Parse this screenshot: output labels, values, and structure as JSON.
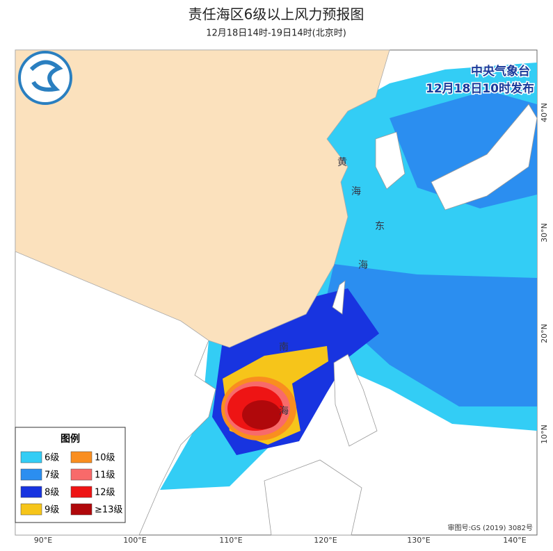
{
  "header": {
    "title": "责任海区6级以上风力预报图",
    "subtitle": "12月18日14时-19日14时(北京时)"
  },
  "issuer": {
    "agency": "中央气象台",
    "issued": "12月18日10时发布"
  },
  "legend": {
    "title": "图例",
    "items": [
      {
        "label": "6级",
        "color": "#33cdf5"
      },
      {
        "label": "7级",
        "color": "#2b8ef0"
      },
      {
        "label": "8级",
        "color": "#1834e0"
      },
      {
        "label": "9级",
        "color": "#f6c51a"
      },
      {
        "label": "10级",
        "color": "#f98e1f"
      },
      {
        "label": "11级",
        "color": "#f86a6a"
      },
      {
        "label": "12级",
        "color": "#ee1414"
      },
      {
        "label": "≥13级",
        "color": "#b0080b"
      }
    ]
  },
  "axes": {
    "lon": [
      "90°E",
      "100°E",
      "110°E",
      "120°E",
      "130°E",
      "140°E"
    ],
    "lat": [
      "10°N",
      "20°N",
      "30°N",
      "40°N"
    ]
  },
  "sea_labels": [
    "黄",
    "海",
    "东",
    "海",
    "南",
    "海"
  ],
  "approval": "审图号:GS (2019) 3082号"
}
